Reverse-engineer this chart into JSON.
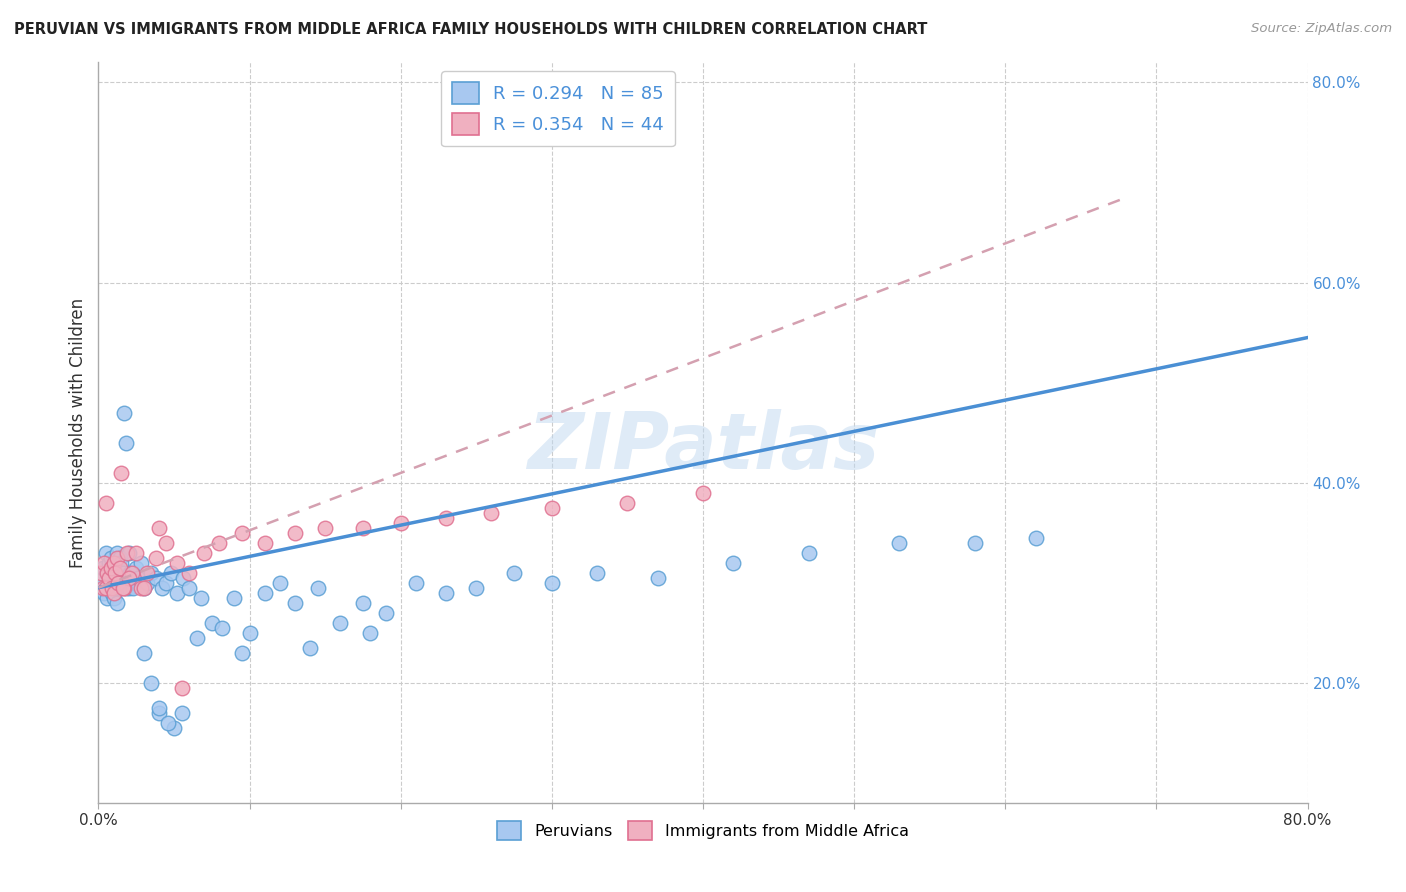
{
  "title": "PERUVIAN VS IMMIGRANTS FROM MIDDLE AFRICA FAMILY HOUSEHOLDS WITH CHILDREN CORRELATION CHART",
  "source": "Source: ZipAtlas.com",
  "ylabel": "Family Households with Children",
  "watermark": "ZIPatlas",
  "xlim": [
    0.0,
    0.8
  ],
  "ylim": [
    0.08,
    0.82
  ],
  "xticks": [
    0.0,
    0.1,
    0.2,
    0.3,
    0.4,
    0.5,
    0.6,
    0.7,
    0.8
  ],
  "xtick_labels_show": [
    0.0,
    0.8
  ],
  "yticks_right": [
    0.2,
    0.4,
    0.6,
    0.8
  ],
  "ytick_labels_right": [
    "20.0%",
    "40.0%",
    "60.0%",
    "80.0%"
  ],
  "peruvian_R": 0.294,
  "peruvian_N": 85,
  "midafrica_R": 0.354,
  "midafrica_N": 44,
  "peruvian_color": "#a8c8f0",
  "midafrica_color": "#f0b0c0",
  "peruvian_edge_color": "#5a9fd4",
  "midafrica_edge_color": "#e07090",
  "peruvian_line_color": "#4a8fd4",
  "midafrica_line_color": "#d4a0b0",
  "peru_trendline_start_x": 0.0,
  "peru_trendline_end_x": 0.8,
  "peru_trendline_start_y": 0.295,
  "peru_trendline_end_y": 0.545,
  "mid_trendline_start_x": 0.0,
  "mid_trendline_end_x": 0.68,
  "mid_trendline_start_y": 0.295,
  "mid_trendline_end_y": 0.685,
  "peru_x": [
    0.002,
    0.003,
    0.004,
    0.005,
    0.005,
    0.006,
    0.006,
    0.007,
    0.007,
    0.008,
    0.008,
    0.008,
    0.009,
    0.009,
    0.01,
    0.01,
    0.01,
    0.011,
    0.011,
    0.012,
    0.012,
    0.012,
    0.013,
    0.013,
    0.014,
    0.014,
    0.015,
    0.015,
    0.016,
    0.017,
    0.018,
    0.018,
    0.02,
    0.02,
    0.021,
    0.022,
    0.023,
    0.025,
    0.026,
    0.028,
    0.03,
    0.032,
    0.035,
    0.038,
    0.042,
    0.045,
    0.048,
    0.052,
    0.056,
    0.06,
    0.068,
    0.075,
    0.082,
    0.09,
    0.1,
    0.11,
    0.12,
    0.13,
    0.145,
    0.16,
    0.175,
    0.19,
    0.21,
    0.23,
    0.25,
    0.275,
    0.3,
    0.33,
    0.37,
    0.42,
    0.47,
    0.53,
    0.58,
    0.62,
    0.04,
    0.18,
    0.14,
    0.095,
    0.065,
    0.055,
    0.05,
    0.046,
    0.04,
    0.035,
    0.03
  ],
  "peru_y": [
    0.305,
    0.315,
    0.29,
    0.33,
    0.295,
    0.31,
    0.285,
    0.32,
    0.3,
    0.295,
    0.315,
    0.325,
    0.31,
    0.29,
    0.315,
    0.3,
    0.285,
    0.32,
    0.295,
    0.31,
    0.33,
    0.28,
    0.305,
    0.315,
    0.295,
    0.325,
    0.3,
    0.32,
    0.31,
    0.47,
    0.44,
    0.295,
    0.33,
    0.295,
    0.31,
    0.3,
    0.295,
    0.315,
    0.305,
    0.32,
    0.295,
    0.3,
    0.31,
    0.305,
    0.295,
    0.3,
    0.31,
    0.29,
    0.305,
    0.295,
    0.285,
    0.26,
    0.255,
    0.285,
    0.25,
    0.29,
    0.3,
    0.28,
    0.295,
    0.26,
    0.28,
    0.27,
    0.3,
    0.29,
    0.295,
    0.31,
    0.3,
    0.31,
    0.305,
    0.32,
    0.33,
    0.34,
    0.34,
    0.345,
    0.17,
    0.25,
    0.235,
    0.23,
    0.245,
    0.17,
    0.155,
    0.16,
    0.175,
    0.2,
    0.23
  ],
  "mid_x": [
    0.002,
    0.003,
    0.004,
    0.005,
    0.005,
    0.006,
    0.007,
    0.008,
    0.009,
    0.01,
    0.01,
    0.011,
    0.012,
    0.013,
    0.014,
    0.015,
    0.017,
    0.019,
    0.022,
    0.025,
    0.028,
    0.032,
    0.038,
    0.045,
    0.052,
    0.06,
    0.07,
    0.08,
    0.095,
    0.11,
    0.13,
    0.15,
    0.175,
    0.2,
    0.23,
    0.26,
    0.3,
    0.35,
    0.4,
    0.055,
    0.04,
    0.03,
    0.02,
    0.016
  ],
  "mid_y": [
    0.31,
    0.295,
    0.32,
    0.295,
    0.38,
    0.31,
    0.305,
    0.315,
    0.295,
    0.32,
    0.29,
    0.31,
    0.325,
    0.3,
    0.315,
    0.41,
    0.295,
    0.33,
    0.31,
    0.33,
    0.295,
    0.31,
    0.325,
    0.34,
    0.32,
    0.31,
    0.33,
    0.34,
    0.35,
    0.34,
    0.35,
    0.355,
    0.355,
    0.36,
    0.365,
    0.37,
    0.375,
    0.38,
    0.39,
    0.195,
    0.355,
    0.295,
    0.305,
    0.295
  ]
}
